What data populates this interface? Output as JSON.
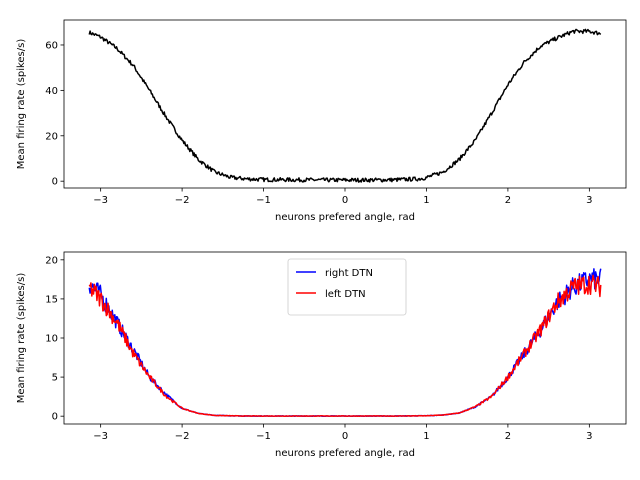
{
  "chart_data": [
    {
      "type": "line",
      "xlabel": "neurons prefered angle, rad",
      "ylabel": "Mean firing rate (spikes/s)",
      "xlim": [
        -3.45,
        3.45
      ],
      "ylim": [
        -3,
        71
      ],
      "xticks": [
        -3,
        -2,
        -1,
        0,
        1,
        2,
        3
      ],
      "yticks": [
        0,
        20,
        40,
        60
      ],
      "grid": false,
      "legend": null,
      "series": [
        {
          "color": "#000000",
          "x": [
            -3.14,
            -3.0,
            -2.8,
            -2.6,
            -2.4,
            -2.2,
            -2.0,
            -1.8,
            -1.6,
            -1.4,
            -1.2,
            -1.0,
            -0.6,
            -0.2,
            0.0,
            0.2,
            0.6,
            0.9,
            1.0,
            1.2,
            1.4,
            1.6,
            1.8,
            2.0,
            2.2,
            2.4,
            2.6,
            2.8,
            3.0,
            3.14
          ],
          "y": [
            65.5,
            63.5,
            58.5,
            51,
            40,
            28.5,
            18,
            9.5,
            4,
            1.6,
            1.0,
            0.7,
            0.6,
            0.5,
            0.5,
            0.5,
            0.6,
            1.0,
            1.6,
            4,
            9.5,
            18,
            30,
            42.5,
            52.5,
            59.5,
            63,
            66,
            66,
            65
          ]
        }
      ]
    },
    {
      "type": "line",
      "xlabel": "neurons prefered angle, rad",
      "ylabel": "Mean firing rate (spikes/s)",
      "xlim": [
        -3.45,
        3.45
      ],
      "ylim": [
        -1,
        21
      ],
      "xticks": [
        -3,
        -2,
        -1,
        0,
        1,
        2,
        3
      ],
      "yticks": [
        0,
        5,
        10,
        15,
        20
      ],
      "grid": false,
      "legend": "top-center",
      "series": [
        {
          "name": "right DTN",
          "color": "#0000ff",
          "x": [
            -3.14,
            -3.0,
            -2.8,
            -2.6,
            -2.4,
            -2.2,
            -2.0,
            -1.8,
            -1.6,
            -1.4,
            -1.2,
            -1.0,
            -0.6,
            -0.2,
            0.0,
            0.2,
            0.6,
            1.0,
            1.2,
            1.4,
            1.6,
            1.8,
            2.0,
            2.2,
            2.4,
            2.6,
            2.8,
            3.0,
            3.14
          ],
          "y": [
            17,
            15.5,
            12,
            8.5,
            5,
            2.8,
            1.0,
            0.35,
            0.1,
            0.05,
            0.02,
            0.02,
            0.02,
            0.02,
            0.02,
            0.02,
            0.02,
            0.05,
            0.15,
            0.4,
            1.2,
            2.5,
            5,
            8,
            11,
            14.5,
            16.5,
            17.5,
            17.5
          ]
        },
        {
          "name": "left DTN",
          "color": "#ff0000",
          "x": [
            -3.14,
            -3.0,
            -2.8,
            -2.6,
            -2.4,
            -2.2,
            -2.0,
            -1.8,
            -1.6,
            -1.4,
            -1.2,
            -1.0,
            -0.6,
            -0.2,
            0.0,
            0.2,
            0.6,
            1.0,
            1.2,
            1.4,
            1.6,
            1.8,
            2.0,
            2.2,
            2.4,
            2.6,
            2.8,
            3.0,
            3.14
          ],
          "y": [
            16.5,
            15,
            12,
            8,
            5,
            2.6,
            1.0,
            0.35,
            0.1,
            0.05,
            0.02,
            0.02,
            0.02,
            0.02,
            0.02,
            0.02,
            0.02,
            0.05,
            0.15,
            0.4,
            1.2,
            2.5,
            5,
            8,
            11,
            14.5,
            16.5,
            17,
            16.5
          ]
        }
      ]
    }
  ]
}
